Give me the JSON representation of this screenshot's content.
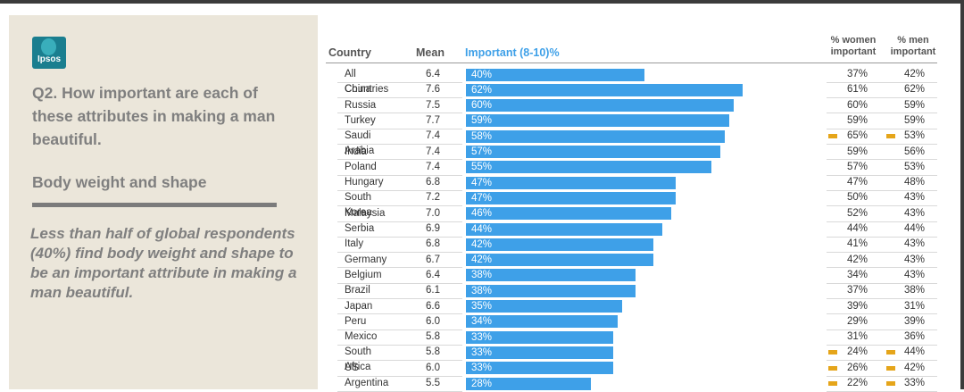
{
  "panel": {
    "logo_text": "Ipsos",
    "question": "Q2. How important are each of these attributes in making a man beautiful.",
    "subtitle": "Body weight and shape",
    "summary": "Less than half of global respondents (40%) find body weight and shape to be an important attribute in making a man beautiful."
  },
  "headers": {
    "country": "Country",
    "mean": "Mean",
    "important": "Important (8-10)%",
    "women_line1": "% women",
    "women_line2": "important",
    "men_line1": "% men",
    "men_line2": "important"
  },
  "colors": {
    "bar": "#3ea0e8",
    "marker": "#e5a51a",
    "panel": "#ebe6da"
  },
  "chart_data": {
    "type": "bar",
    "orientation": "horizontal",
    "xlim": [
      0,
      100
    ],
    "rows": [
      {
        "country": "All Countries",
        "mean": "6.4",
        "important": 40,
        "label": "40%",
        "women": "37%",
        "men": "42%",
        "women_marker": false,
        "men_marker": false
      },
      {
        "country": "China",
        "mean": "7.6",
        "important": 62,
        "label": "62%",
        "women": "61%",
        "men": "62%",
        "women_marker": false,
        "men_marker": false
      },
      {
        "country": "Russia",
        "mean": "7.5",
        "important": 60,
        "label": "60%",
        "women": "60%",
        "men": "59%",
        "women_marker": false,
        "men_marker": false
      },
      {
        "country": "Turkey",
        "mean": "7.7",
        "important": 59,
        "label": "59%",
        "women": "59%",
        "men": "59%",
        "women_marker": false,
        "men_marker": false
      },
      {
        "country": "Saudi Arabia",
        "mean": "7.4",
        "important": 58,
        "label": "58%",
        "women": "65%",
        "men": "53%",
        "women_marker": true,
        "men_marker": true
      },
      {
        "country": "India",
        "mean": "7.4",
        "important": 57,
        "label": "57%",
        "women": "59%",
        "men": "56%",
        "women_marker": false,
        "men_marker": false
      },
      {
        "country": "Poland",
        "mean": "7.4",
        "important": 55,
        "label": "55%",
        "women": "57%",
        "men": "53%",
        "women_marker": false,
        "men_marker": false
      },
      {
        "country": "Hungary",
        "mean": "6.8",
        "important": 47,
        "label": "47%",
        "women": "47%",
        "men": "48%",
        "women_marker": false,
        "men_marker": false
      },
      {
        "country": "South Korea",
        "mean": "7.2",
        "important": 47,
        "label": "47%",
        "women": "50%",
        "men": "43%",
        "women_marker": false,
        "men_marker": false
      },
      {
        "country": "Malaysia",
        "mean": "7.0",
        "important": 46,
        "label": "46%",
        "women": "52%",
        "men": "43%",
        "women_marker": false,
        "men_marker": false
      },
      {
        "country": "Serbia",
        "mean": "6.9",
        "important": 44,
        "label": "44%",
        "women": "44%",
        "men": "44%",
        "women_marker": false,
        "men_marker": false
      },
      {
        "country": "Italy",
        "mean": "6.8",
        "important": 42,
        "label": "42%",
        "women": "41%",
        "men": "43%",
        "women_marker": false,
        "men_marker": false
      },
      {
        "country": "Germany",
        "mean": "6.7",
        "important": 42,
        "label": "42%",
        "women": "42%",
        "men": "43%",
        "women_marker": false,
        "men_marker": false
      },
      {
        "country": "Belgium",
        "mean": "6.4",
        "important": 38,
        "label": "38%",
        "women": "34%",
        "men": "43%",
        "women_marker": false,
        "men_marker": false
      },
      {
        "country": "Brazil",
        "mean": "6.1",
        "important": 38,
        "label": "38%",
        "women": "37%",
        "men": "38%",
        "women_marker": false,
        "men_marker": false
      },
      {
        "country": "Japan",
        "mean": "6.6",
        "important": 35,
        "label": "35%",
        "women": "39%",
        "men": "31%",
        "women_marker": false,
        "men_marker": false
      },
      {
        "country": "Peru",
        "mean": "6.0",
        "important": 34,
        "label": "34%",
        "women": "29%",
        "men": "39%",
        "women_marker": false,
        "men_marker": false
      },
      {
        "country": "Mexico",
        "mean": "5.8",
        "important": 33,
        "label": "33%",
        "women": "31%",
        "men": "36%",
        "women_marker": false,
        "men_marker": false
      },
      {
        "country": "South Africa",
        "mean": "5.8",
        "important": 33,
        "label": "33%",
        "women": "24%",
        "men": "44%",
        "women_marker": true,
        "men_marker": true
      },
      {
        "country": "US",
        "mean": "6.0",
        "important": 33,
        "label": "33%",
        "women": "26%",
        "men": "42%",
        "women_marker": true,
        "men_marker": true
      },
      {
        "country": "Argentina",
        "mean": "5.5",
        "important": 28,
        "label": "28%",
        "women": "22%",
        "men": "33%",
        "women_marker": true,
        "men_marker": true
      }
    ]
  }
}
